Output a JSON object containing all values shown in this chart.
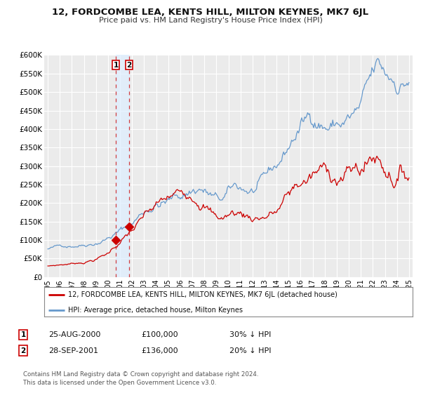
{
  "title": "12, FORDCOMBE LEA, KENTS HILL, MILTON KEYNES, MK7 6JL",
  "subtitle": "Price paid vs. HM Land Registry's House Price Index (HPI)",
  "legend_label_red": "12, FORDCOMBE LEA, KENTS HILL, MILTON KEYNES, MK7 6JL (detached house)",
  "legend_label_blue": "HPI: Average price, detached house, Milton Keynes",
  "transaction1_date": "25-AUG-2000",
  "transaction1_price": "£100,000",
  "transaction1_hpi": "30% ↓ HPI",
  "transaction2_date": "28-SEP-2001",
  "transaction2_price": "£136,000",
  "transaction2_hpi": "20% ↓ HPI",
  "footer_line1": "Contains HM Land Registry data © Crown copyright and database right 2024.",
  "footer_line2": "This data is licensed under the Open Government Licence v3.0.",
  "background_color": "#ffffff",
  "plot_bg_color": "#ebebeb",
  "grid_color": "#ffffff",
  "red_color": "#cc0000",
  "blue_color": "#6699cc",
  "shade_color": "#ddeeff",
  "marker1_year": 2000.646,
  "marker1_price": 100000,
  "marker2_year": 2001.747,
  "marker2_price": 136000,
  "ylim": [
    0,
    600000
  ],
  "xlim_start": 1994.7,
  "xlim_end": 2025.3,
  "yticks": [
    0,
    50000,
    100000,
    150000,
    200000,
    250000,
    300000,
    350000,
    400000,
    450000,
    500000,
    550000,
    600000
  ],
  "ytick_labels": [
    "£0",
    "£50K",
    "£100K",
    "£150K",
    "£200K",
    "£250K",
    "£300K",
    "£350K",
    "£400K",
    "£450K",
    "£500K",
    "£550K",
    "£600K"
  ],
  "xtick_years": [
    1995,
    1996,
    1997,
    1998,
    1999,
    2000,
    2001,
    2002,
    2003,
    2004,
    2005,
    2006,
    2007,
    2008,
    2009,
    2010,
    2011,
    2012,
    2013,
    2014,
    2015,
    2016,
    2017,
    2018,
    2019,
    2020,
    2021,
    2022,
    2023,
    2024,
    2025
  ]
}
